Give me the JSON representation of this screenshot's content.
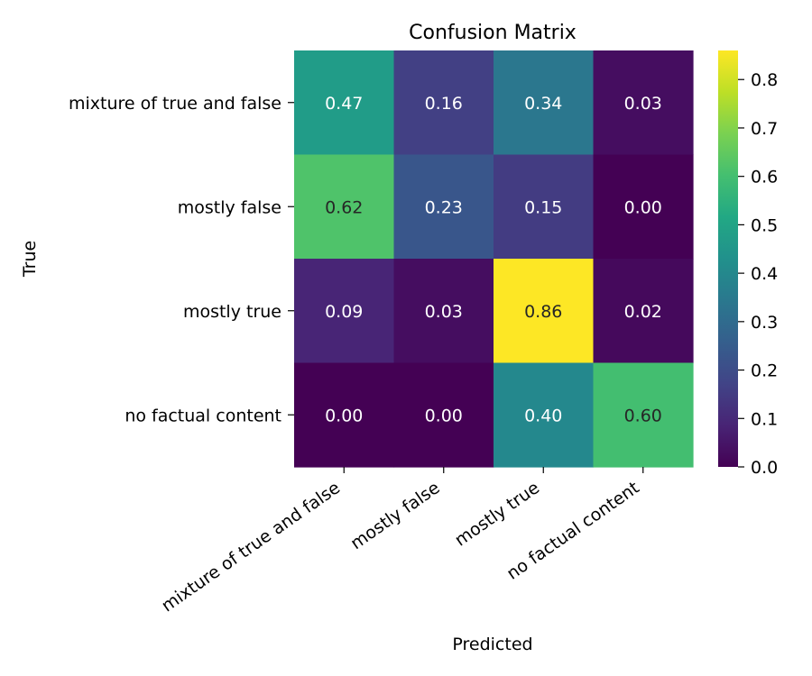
{
  "chart_data": {
    "type": "heatmap",
    "title": "Confusion Matrix",
    "xlabel": "Predicted",
    "ylabel": "True",
    "x_categories": [
      "mixture of true and false",
      "mostly false",
      "mostly true",
      "no factual content"
    ],
    "y_categories": [
      "mixture of true and false",
      "mostly false",
      "mostly true",
      "no factual content"
    ],
    "values": [
      [
        0.47,
        0.16,
        0.34,
        0.03
      ],
      [
        0.62,
        0.23,
        0.15,
        0.0
      ],
      [
        0.09,
        0.03,
        0.86,
        0.02
      ],
      [
        0.0,
        0.0,
        0.4,
        0.6
      ]
    ],
    "cell_labels": [
      [
        "0.47",
        "0.16",
        "0.34",
        "0.03"
      ],
      [
        "0.62",
        "0.23",
        "0.15",
        "0.00"
      ],
      [
        "0.09",
        "0.03",
        "0.86",
        "0.02"
      ],
      [
        "0.00",
        "0.00",
        "0.40",
        "0.60"
      ]
    ],
    "colormap": "viridis",
    "colorbar": {
      "range": [
        0.0,
        0.86
      ],
      "ticks": [
        0.0,
        0.1,
        0.2,
        0.3,
        0.4,
        0.5,
        0.6,
        0.7,
        0.8
      ],
      "tick_labels": [
        "0.0",
        "0.1",
        "0.2",
        "0.3",
        "0.4",
        "0.5",
        "0.6",
        "0.7",
        "0.8"
      ]
    },
    "text_color_light": "#ffffff",
    "text_color_dark": "#262626"
  }
}
